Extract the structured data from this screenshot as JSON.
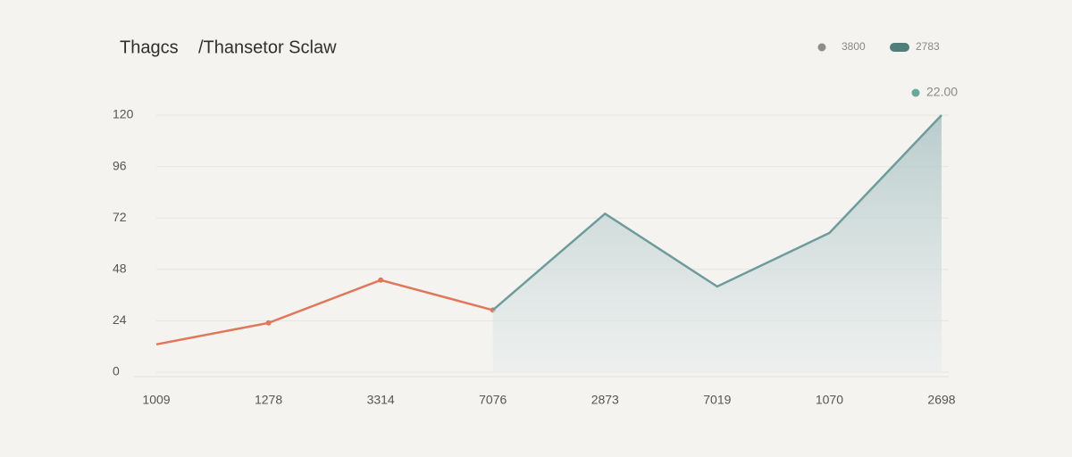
{
  "chart_data": {
    "type": "line",
    "title": "Thagcs",
    "subtitle": "/Thansetor Sclaw",
    "categories": [
      "1009",
      "1278",
      "3314",
      "7076",
      "2873",
      "7019",
      "1070",
      "2698"
    ],
    "series": [
      {
        "name": "3800",
        "color": "#e0775a",
        "marker_color": "#8c8c8c",
        "values": [
          13,
          23,
          43,
          29,
          null,
          null,
          null,
          null
        ]
      },
      {
        "name": "2783",
        "color": "#6e9c9c",
        "marker_color": "#4f7f78",
        "values": [
          null,
          null,
          null,
          29,
          74,
          40,
          65,
          120
        ],
        "area": true
      }
    ],
    "ylim": [
      0,
      120
    ],
    "yticks": [
      0,
      24,
      48,
      72,
      96,
      120
    ],
    "grid": true,
    "annotation": {
      "text": "22.00",
      "color": "#6aa89a"
    }
  }
}
